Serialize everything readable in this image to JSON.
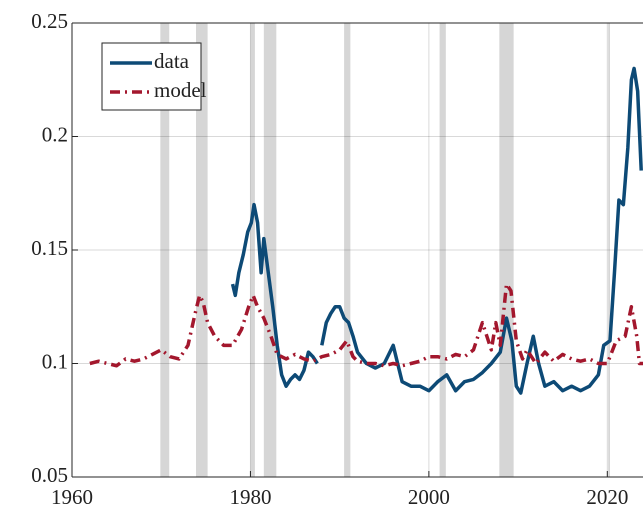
{
  "chart_data": {
    "type": "line",
    "xlim": [
      1960,
      2024
    ],
    "xticks": [
      1960,
      1980,
      2000,
      2020
    ],
    "ylim": [
      0.05,
      0.25
    ],
    "yticks": [
      0.05,
      0.1,
      0.15,
      0.2,
      0.25
    ],
    "grid": true,
    "legend": "upper left",
    "shaded_periods": [
      [
        1969.9,
        1970.9
      ],
      [
        1973.9,
        1975.2
      ],
      [
        1980.0,
        1980.5
      ],
      [
        1981.5,
        1982.9
      ],
      [
        1990.5,
        1991.2
      ],
      [
        2001.2,
        2001.9
      ],
      [
        2007.9,
        2009.5
      ],
      [
        2020.1,
        2020.3
      ]
    ],
    "shade_color": "#d6d6d6",
    "series": [
      {
        "name": "data",
        "color": "#0d4a76",
        "style": "solid",
        "x": [
          1978,
          1978.3,
          1978.7,
          1979.2,
          1979.7,
          1980.1,
          1980.4,
          1980.8,
          1981.2,
          1981.5,
          1982,
          1982.5,
          1983,
          1983.5,
          1984,
          1984.5,
          1985,
          1985.5,
          1986,
          1986.5,
          1987,
          1987.5,
          1987.8,
          1988,
          1988.5,
          1989,
          1989.5,
          1990,
          1990.5,
          1991,
          1991.5,
          1992,
          1993,
          1994,
          1995,
          1996,
          1996.5,
          1997,
          1998,
          1999,
          2000,
          2001,
          2002,
          2003,
          2004,
          2005,
          2006,
          2007,
          2008,
          2008.7,
          2009.3,
          2009.8,
          2010.3,
          2011,
          2011.7,
          2012.3,
          2013,
          2014,
          2015,
          2016,
          2017,
          2018,
          2019,
          2019.6,
          2020.3,
          2020.8,
          2021.3,
          2021.8,
          2022.3,
          2022.7,
          2023,
          2023.4,
          2023.8
        ],
        "values": [
          0.135,
          0.13,
          0.14,
          0.148,
          0.158,
          0.162,
          0.17,
          0.162,
          0.14,
          0.155,
          0.14,
          0.125,
          0.108,
          0.095,
          0.09,
          0.093,
          0.095,
          0.093,
          0.097,
          0.105,
          0.103,
          0.1,
          null,
          0.108,
          0.118,
          0.122,
          0.125,
          0.125,
          0.12,
          0.118,
          0.112,
          0.105,
          0.1,
          0.098,
          0.1,
          0.108,
          0.1,
          0.092,
          0.09,
          0.09,
          0.088,
          0.092,
          0.095,
          0.088,
          0.092,
          0.093,
          0.096,
          0.1,
          0.105,
          0.12,
          0.11,
          0.09,
          0.087,
          0.1,
          0.112,
          0.1,
          0.09,
          0.092,
          0.088,
          0.09,
          0.088,
          0.09,
          0.095,
          0.108,
          0.11,
          0.14,
          0.172,
          0.17,
          0.195,
          0.225,
          0.23,
          0.22,
          0.185
        ]
      },
      {
        "name": "model",
        "color": "#a3172d",
        "style": "dashdot",
        "x": [
          1962,
          1963,
          1964,
          1965,
          1966,
          1967,
          1968,
          1969,
          1970,
          1971,
          1972,
          1973,
          1973.8,
          1974.3,
          1974.7,
          1975.2,
          1976,
          1977,
          1978,
          1979,
          1979.8,
          1980.3,
          1980.8,
          1981.5,
          1982.3,
          1983,
          1984,
          1985,
          1986,
          1987,
          1988,
          1989,
          1990,
          1990.8,
          1991.5,
          1992,
          1993,
          1994,
          1995,
          1996,
          1997,
          1998,
          1999,
          2000,
          2001,
          2002,
          2003,
          2004,
          2005,
          2006,
          2006.5,
          2007,
          2007.5,
          2008,
          2008.7,
          2009.2,
          2009.8,
          2010.5,
          2011,
          2012,
          2013,
          2014,
          2015,
          2016,
          2017,
          2018,
          2019,
          2020,
          2021,
          2022,
          2022.7,
          2023.3,
          2023.6,
          2024
        ],
        "values": [
          0.1,
          0.101,
          0.1,
          0.099,
          0.102,
          0.101,
          0.102,
          0.104,
          0.106,
          0.103,
          0.102,
          0.108,
          0.122,
          0.13,
          0.127,
          0.118,
          0.112,
          0.108,
          0.108,
          0.115,
          0.125,
          0.13,
          0.125,
          0.12,
          0.112,
          0.104,
          0.102,
          0.104,
          0.102,
          0.101,
          0.103,
          0.104,
          0.106,
          0.11,
          0.103,
          0.101,
          0.1,
          0.1,
          0.099,
          0.1,
          0.099,
          0.1,
          0.101,
          0.103,
          0.103,
          0.102,
          0.104,
          0.103,
          0.106,
          0.118,
          0.112,
          0.106,
          0.118,
          0.108,
          0.135,
          0.132,
          0.11,
          0.102,
          0.106,
          0.1,
          0.105,
          0.101,
          0.104,
          0.102,
          0.101,
          0.102,
          0.1,
          0.1,
          0.11,
          0.112,
          0.125,
          0.112,
          0.1,
          0.1
        ]
      }
    ]
  }
}
